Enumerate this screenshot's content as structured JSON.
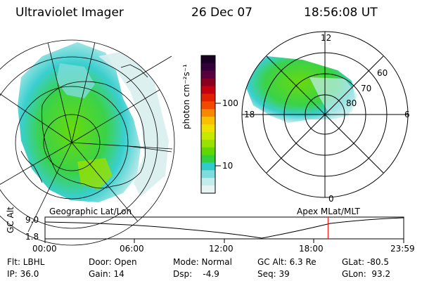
{
  "header": {
    "title": "Ultraviolet Imager",
    "date": "26 Dec 07",
    "time": "18:56:08 UT"
  },
  "colorbar": {
    "label": "photon cm⁻²s⁻¹",
    "ticks": [
      "100",
      "10"
    ],
    "colors": [
      "#1a0022",
      "#33003a",
      "#5a0040",
      "#8a0020",
      "#c40010",
      "#e02000",
      "#f24800",
      "#f88800",
      "#f8c000",
      "#f0e000",
      "#c8e800",
      "#98e000",
      "#60d800",
      "#30d040",
      "#30cccc",
      "#80dcdc",
      "#c4ecec",
      "#e8f4f4"
    ]
  },
  "maps": {
    "geo_label": "Geographic Lat/Lon",
    "apex_label": "Apex MLat/MLT",
    "polar_labels": {
      "top": "12",
      "bottom": "0",
      "left": "18",
      "right": "6",
      "lat60": "60",
      "lat70": "70",
      "lat80": "80"
    }
  },
  "altitude_plot": {
    "ylabel": "GC Alt",
    "ytop": "9.0",
    "ybottom": "1.8",
    "xticks": [
      "00:00",
      "06:00",
      "12:00",
      "18:00",
      "23:59"
    ],
    "current_time_fraction": 0.789,
    "marker_color": "#ff0000"
  },
  "info": {
    "filter": "Flt: LBHL",
    "ip": "IP: 36.0",
    "door": "Door: Open",
    "gain": "Gain: 14",
    "mode": "Mode: Normal",
    "dsp": "Dsp:    -4.9",
    "gcalt": "GC Alt: 6.3 Re",
    "seq": "Seq: 39",
    "glat": "GLat: -80.5",
    "glon": "GLon:  93.2"
  }
}
